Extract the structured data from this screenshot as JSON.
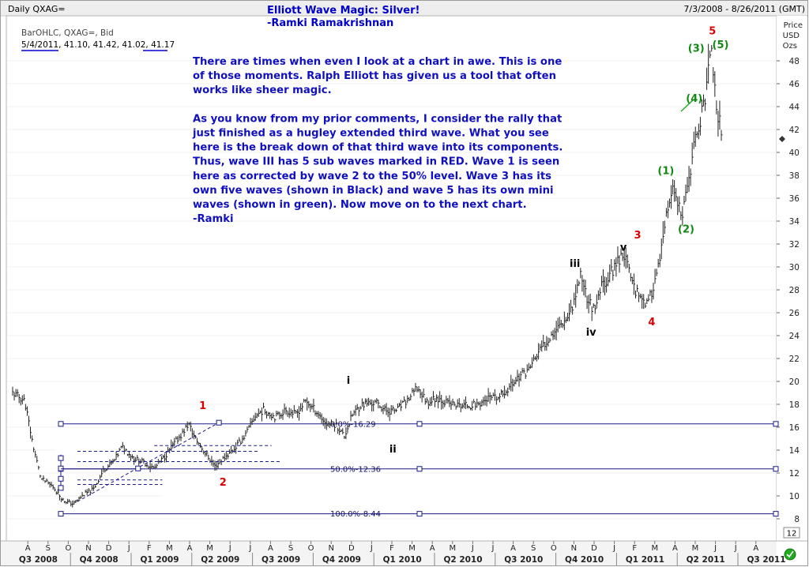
{
  "header": {
    "symbol": "Daily QXAG=",
    "title": "Elliott Wave Magic:  Silver!",
    "author": "-Ramki Ramakrishnan",
    "date_range": "7/3/2008 - 8/26/2011 (GMT)"
  },
  "legend": {
    "series_line": "BarOHLC, QXAG=, Bid",
    "ohlc_date": "5/4/2011",
    "ohlc_values": ", 41.10, 41.42, 41.02, ",
    "ohlc_close": "41.17"
  },
  "price_axis_title": [
    "Price",
    "USD",
    "Ozs"
  ],
  "last_price_marker": "41.17",
  "corner_box": "12",
  "commentary": [
    "There are times when even I look at a chart in awe. This is one",
    "of those moments. Ralph Elliott has given us a tool that often",
    "works like sheer magic.",
    "",
    "As you know from my prior comments, I consider the rally that",
    "just finished as a hugley extended third wave. What you see",
    "here is the break down of that third wave into its components.",
    "Thus, wave III has 5 sub waves marked in RED. Wave 1 is seen",
    "here as corrected by wave 2 to the 50% level. Wave 3 has its",
    "own five waves (shown in Black) and wave 5 has its own mini",
    "waves (shown in green). Now move on to the next chart.",
    "-Ramki"
  ],
  "colors": {
    "price_bars": "#222222",
    "fib_lines": "#1a1a8c",
    "title": "#0000cc",
    "commentary": "#1010c0",
    "wave_red": "#dd0000",
    "wave_black": "#000000",
    "wave_green": "#118811"
  },
  "chart_data": {
    "type": "ohlc",
    "instrument": "QXAG=",
    "y_axis": {
      "min": 7,
      "max": 51,
      "ticks": [
        8,
        10,
        12,
        14,
        16,
        18,
        20,
        22,
        24,
        26,
        28,
        30,
        32,
        34,
        36,
        38,
        40,
        42,
        44,
        46,
        48
      ],
      "position": "right"
    },
    "x_axis": {
      "months": [
        "A",
        "S",
        "O",
        "N",
        "D",
        "J",
        "F",
        "M",
        "A",
        "M",
        "J",
        "J",
        "A",
        "S",
        "O",
        "N",
        "D",
        "J",
        "F",
        "M",
        "A",
        "M",
        "J",
        "J",
        "A",
        "S",
        "O",
        "N",
        "D",
        "J",
        "F",
        "M",
        "A",
        "M",
        "J",
        "J",
        "A"
      ],
      "quarters": [
        "Q3 2008",
        "Q4 2008",
        "Q1 2009",
        "Q2 2009",
        "Q3 2009",
        "Q4 2009",
        "Q1 2010",
        "Q2 2010",
        "Q3 2010",
        "Q4 2010",
        "Q1 2011",
        "Q2 2011",
        "Q3 2011"
      ]
    },
    "price_path": [
      [
        0,
        19.0
      ],
      [
        0.6,
        18.3
      ],
      [
        1.0,
        14.5
      ],
      [
        1.4,
        11.5
      ],
      [
        2.0,
        10.8
      ],
      [
        2.5,
        9.6
      ],
      [
        3.0,
        9.3
      ],
      [
        3.5,
        10.1
      ],
      [
        4.0,
        10.6
      ],
      [
        4.5,
        12.3
      ],
      [
        5.0,
        13.0
      ],
      [
        5.4,
        14.3
      ],
      [
        6.0,
        13.3
      ],
      [
        6.5,
        12.9
      ],
      [
        7.0,
        12.4
      ],
      [
        7.5,
        13.4
      ],
      [
        8.0,
        14.6
      ],
      [
        8.4,
        15.5
      ],
      [
        8.7,
        16.3
      ],
      [
        9.0,
        15.1
      ],
      [
        9.5,
        13.8
      ],
      [
        10.0,
        12.6
      ],
      [
        10.5,
        13.4
      ],
      [
        11.0,
        14.2
      ],
      [
        11.5,
        15.3
      ],
      [
        12.0,
        17.0
      ],
      [
        12.4,
        17.5
      ],
      [
        13.0,
        16.9
      ],
      [
        13.5,
        17.5
      ],
      [
        14.0,
        17.1
      ],
      [
        14.5,
        18.3
      ],
      [
        15.0,
        17.4
      ],
      [
        15.5,
        16.3
      ],
      [
        16.0,
        16.2
      ],
      [
        16.4,
        15.2
      ],
      [
        16.8,
        17.1
      ],
      [
        17.2,
        17.9
      ],
      [
        17.5,
        18.1
      ],
      [
        18.0,
        18.1
      ],
      [
        18.5,
        17.4
      ],
      [
        19.0,
        17.5
      ],
      [
        19.5,
        18.3
      ],
      [
        20.0,
        19.4
      ],
      [
        20.5,
        18.2
      ],
      [
        21.0,
        18.6
      ],
      [
        21.5,
        18.1
      ],
      [
        22.0,
        17.9
      ],
      [
        22.5,
        17.9
      ],
      [
        23.0,
        18.0
      ],
      [
        23.5,
        18.5
      ],
      [
        24.0,
        18.5
      ],
      [
        24.5,
        19.4
      ],
      [
        25.0,
        20.4
      ],
      [
        25.5,
        21.0
      ],
      [
        26.0,
        22.5
      ],
      [
        26.5,
        23.8
      ],
      [
        27.0,
        24.9
      ],
      [
        27.5,
        25.8
      ],
      [
        27.8,
        27.3
      ],
      [
        28.1,
        29.5
      ],
      [
        28.4,
        27.3
      ],
      [
        28.8,
        26.0
      ],
      [
        29.1,
        28.3
      ],
      [
        29.5,
        29.2
      ],
      [
        29.9,
        30.5
      ],
      [
        30.2,
        31.3
      ],
      [
        30.5,
        29.5
      ],
      [
        30.8,
        28.0
      ],
      [
        31.1,
        27.4
      ],
      [
        31.4,
        26.6
      ],
      [
        31.7,
        28.5
      ],
      [
        32.0,
        30.5
      ],
      [
        32.3,
        34.0
      ],
      [
        32.6,
        36.8
      ],
      [
        32.9,
        35.5
      ],
      [
        33.1,
        33.9
      ],
      [
        33.4,
        37.5
      ],
      [
        33.7,
        40.5
      ],
      [
        34.0,
        43.0
      ],
      [
        34.2,
        44.2
      ],
      [
        34.4,
        47.5
      ],
      [
        34.6,
        48.6
      ],
      [
        34.75,
        44.5
      ],
      [
        34.85,
        41.8
      ],
      [
        35.0,
        43.0
      ],
      [
        35.1,
        41.0
      ]
    ],
    "fibonacci_retracement": [
      {
        "level": "0.0%",
        "value": 16.29
      },
      {
        "level": "50.0%",
        "value": 12.36
      },
      {
        "level": "100.0%",
        "value": 8.44
      }
    ],
    "wave_labels": [
      {
        "text": "1",
        "color": "red",
        "x": 9.4,
        "y": 17.6
      },
      {
        "text": "2",
        "color": "red",
        "x": 10.4,
        "y": 10.9
      },
      {
        "text": "3",
        "color": "red",
        "x": 30.9,
        "y": 32.5
      },
      {
        "text": "4",
        "color": "red",
        "x": 31.6,
        "y": 24.9
      },
      {
        "text": "5",
        "color": "red",
        "x": 34.6,
        "y": 50.3
      },
      {
        "text": "i",
        "color": "black",
        "x": 16.6,
        "y": 19.8
      },
      {
        "text": "ii",
        "color": "black",
        "x": 18.8,
        "y": 13.8
      },
      {
        "text": "iii",
        "color": "black",
        "x": 27.8,
        "y": 30.0
      },
      {
        "text": "iv",
        "color": "black",
        "x": 28.6,
        "y": 24.0
      },
      {
        "text": "v",
        "color": "black",
        "x": 30.2,
        "y": 31.4
      },
      {
        "text": "(1)",
        "color": "green",
        "x": 32.3,
        "y": 38.1
      },
      {
        "text": "(2)",
        "color": "green",
        "x": 33.3,
        "y": 33.0
      },
      {
        "text": "(3)",
        "color": "green",
        "x": 33.8,
        "y": 48.8
      },
      {
        "text": "(4)",
        "color": "green",
        "x": 33.7,
        "y": 44.4
      },
      {
        "text": "(5)",
        "color": "green",
        "x": 35.0,
        "y": 49.1
      }
    ]
  }
}
